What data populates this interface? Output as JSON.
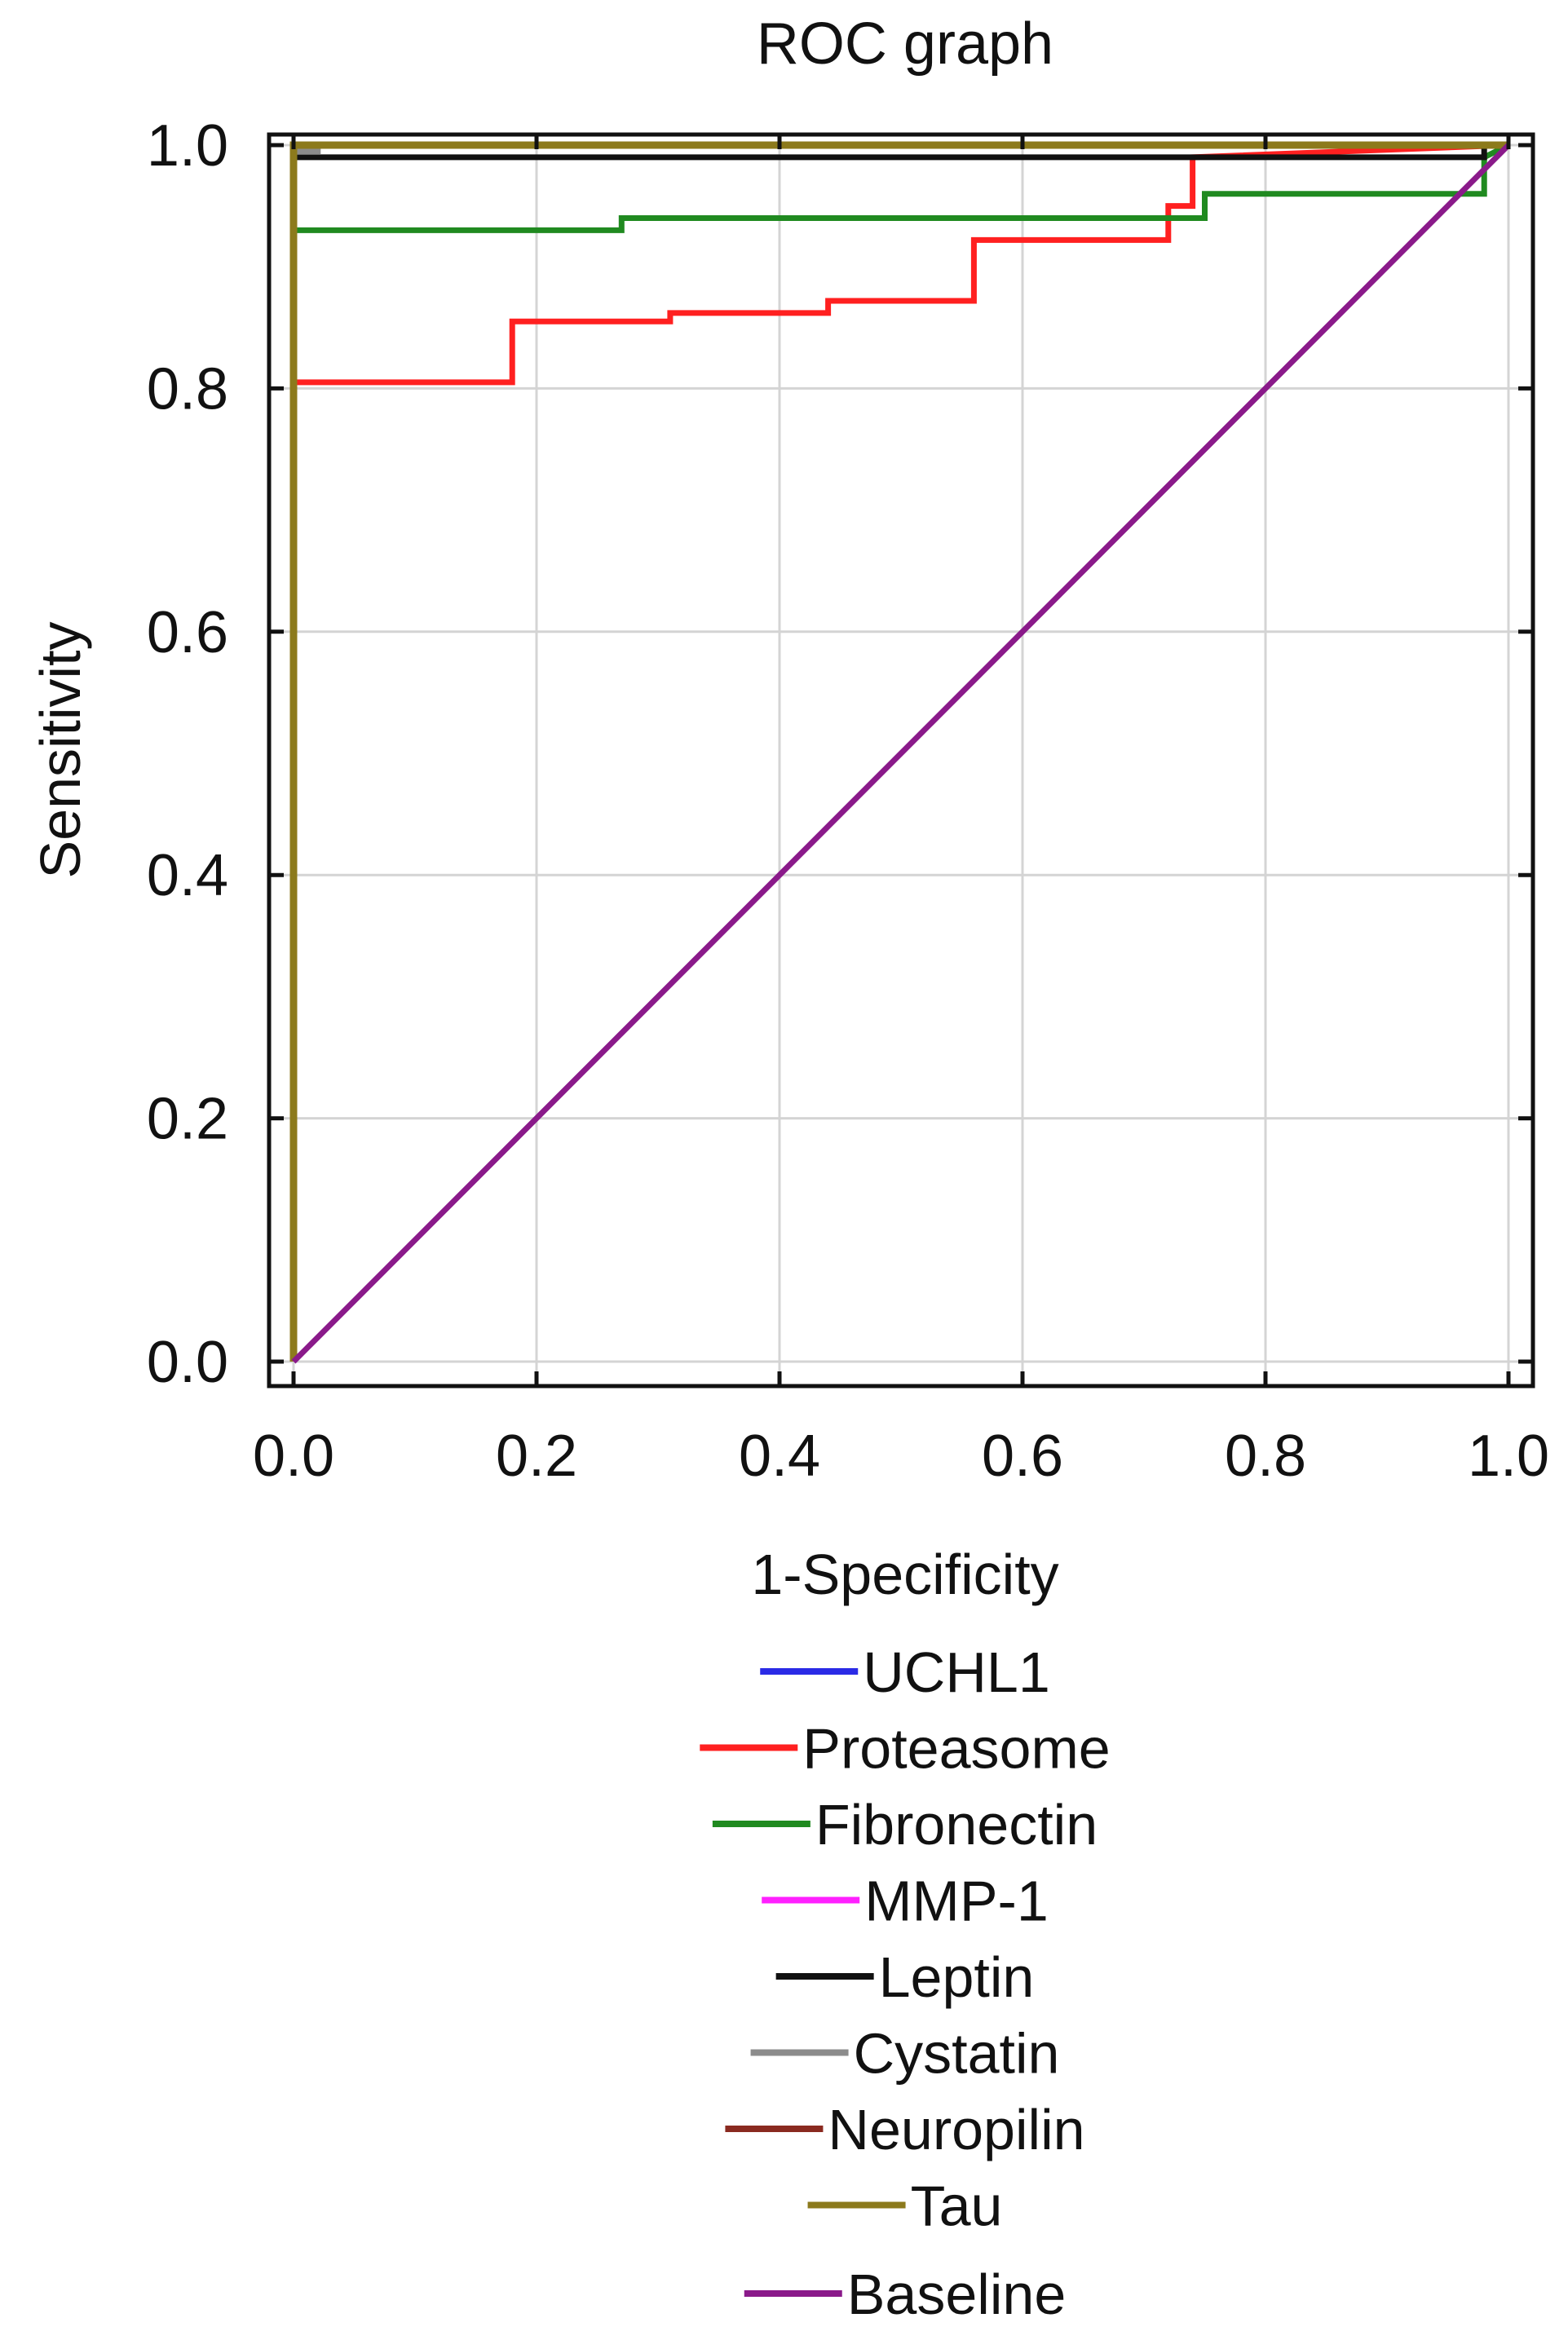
{
  "chart_data": {
    "type": "line",
    "title": "ROC graph",
    "xlabel": "1-Specificity",
    "ylabel": "Sensitivity",
    "xlim": [
      0,
      1
    ],
    "ylim": [
      0,
      1
    ],
    "x_ticks": [
      "0.0",
      "0.2",
      "0.4",
      "0.6",
      "0.8",
      "1.0"
    ],
    "y_ticks": [
      "0.0",
      "0.2",
      "0.4",
      "0.6",
      "0.8",
      "1.0"
    ],
    "grid": true,
    "legend_position": "bottom",
    "series": [
      {
        "name": "UCHL1",
        "color": "#2a2ae6",
        "x": [
          0,
          0,
          1
        ],
        "y": [
          0,
          1,
          1
        ]
      },
      {
        "name": "Proteasome",
        "color": "#ff2020",
        "x": [
          0,
          0,
          0.18,
          0.18,
          0.31,
          0.31,
          0.44,
          0.44,
          0.56,
          0.56,
          0.72,
          0.72,
          0.74,
          0.74,
          1
        ],
        "y": [
          0,
          0.805,
          0.805,
          0.855,
          0.855,
          0.862,
          0.862,
          0.872,
          0.872,
          0.922,
          0.922,
          0.95,
          0.95,
          0.99,
          1
        ]
      },
      {
        "name": "Fibronectin",
        "color": "#208a20",
        "x": [
          0,
          0,
          0.27,
          0.27,
          0.75,
          0.75,
          0.98,
          0.98,
          1
        ],
        "y": [
          0,
          0.93,
          0.93,
          0.94,
          0.94,
          0.96,
          0.96,
          0.99,
          1
        ]
      },
      {
        "name": "MMP-1",
        "color": "#ff20ff",
        "x": [
          0,
          0,
          1
        ],
        "y": [
          0,
          1,
          1
        ]
      },
      {
        "name": "Leptin",
        "color": "#111111",
        "x": [
          0,
          0,
          0.98,
          0.98,
          1
        ],
        "y": [
          0,
          0.99,
          0.99,
          1,
          1
        ]
      },
      {
        "name": "Cystatin",
        "color": "#8c8c8c",
        "x": [
          0,
          0,
          0.02,
          0.02,
          1
        ],
        "y": [
          0,
          0.995,
          0.995,
          1,
          1
        ]
      },
      {
        "name": "Neuropilin",
        "color": "#8a2a20",
        "x": [
          0,
          0,
          1
        ],
        "y": [
          0,
          1,
          1
        ]
      },
      {
        "name": "Tau",
        "color": "#8c7a1c",
        "x": [
          0,
          0,
          1
        ],
        "y": [
          0,
          1,
          1
        ]
      },
      {
        "name": "Baseline",
        "color": "#8a1a8a",
        "x": [
          0,
          1
        ],
        "y": [
          0,
          1
        ]
      }
    ]
  }
}
